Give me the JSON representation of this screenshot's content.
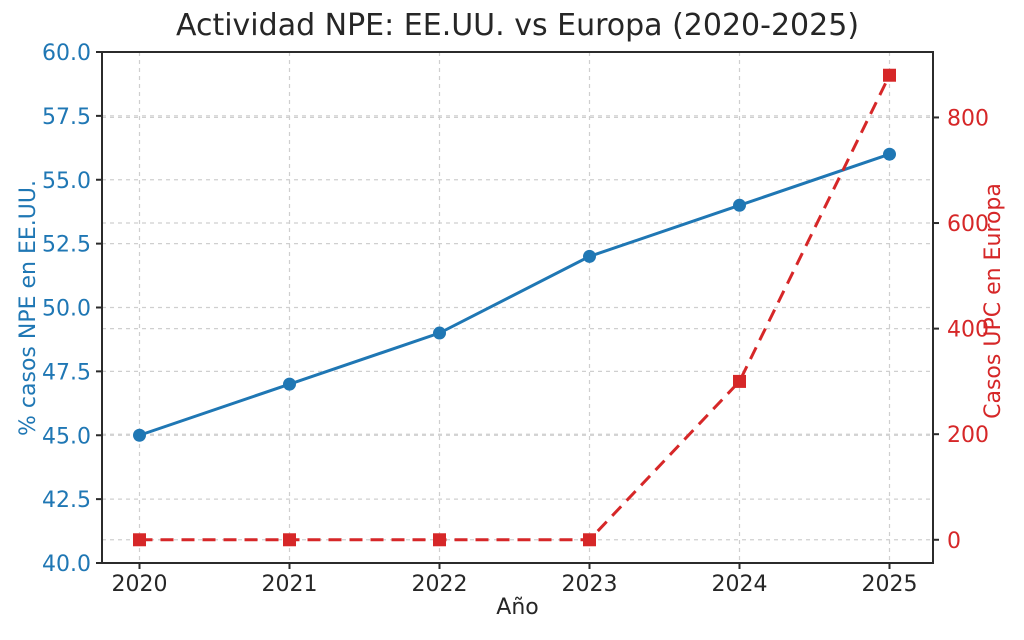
{
  "chart_data": {
    "type": "line",
    "title": "Actividad NPE: EE.UU. vs Europa (2020-2025)",
    "x": [
      2020,
      2021,
      2022,
      2023,
      2024,
      2025
    ],
    "xlabel": "Año",
    "series": [
      {
        "name": "% casos NPE en EE.UU.",
        "axis": "left",
        "values": [
          45,
          47,
          49,
          52,
          54,
          56
        ],
        "color": "#1f77b4",
        "line_style": "solid",
        "marker": "circle"
      },
      {
        "name": "Casos UPC en Europa",
        "axis": "right",
        "values": [
          0,
          0,
          0,
          0,
          300,
          880
        ],
        "color": "#d62728",
        "line_style": "dashed",
        "marker": "square"
      }
    ],
    "axes": {
      "x": {
        "label": "Año",
        "tick_values": [
          2020,
          2021,
          2022,
          2023,
          2024,
          2025
        ],
        "tick_labels": [
          "2020",
          "2021",
          "2022",
          "2023",
          "2024",
          "2025"
        ],
        "lim": [
          2019.75,
          2025.29
        ],
        "color": "#262626"
      },
      "left": {
        "label": "% casos NPE en EE.UU.",
        "tick_values": [
          40,
          42.5,
          45,
          47.5,
          50,
          52.5,
          55,
          57.5,
          60
        ],
        "tick_labels": [
          "40.0",
          "42.5",
          "45.0",
          "47.5",
          "50.0",
          "52.5",
          "55.0",
          "57.5",
          "60.0"
        ],
        "lim": [
          40,
          60
        ],
        "color": "#1f77b4"
      },
      "right": {
        "label": "Casos UPC en Europa",
        "tick_values": [
          0,
          200,
          400,
          600,
          800
        ],
        "tick_labels": [
          "0",
          "200",
          "400",
          "600",
          "800"
        ],
        "lim": [
          -44,
          924
        ],
        "color": "#d62728"
      }
    },
    "grid": {
      "show": true,
      "style": "dashed",
      "color": "#cfcfcf"
    },
    "legend": "none",
    "background": "#ffffff",
    "spine_color": "#2b2b2b"
  }
}
